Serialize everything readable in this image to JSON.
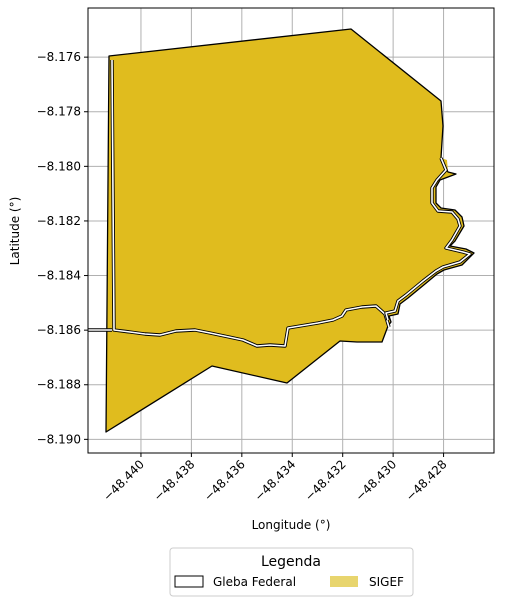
{
  "chart_data": {
    "type": "map",
    "xlabel": "Longitude (°)",
    "ylabel": "Latitude (°)",
    "xlim": [
      -48.4421,
      -48.426
    ],
    "ylim": [
      -8.1905,
      -8.1742
    ],
    "x_ticks": [
      -48.44,
      -48.438,
      -48.436,
      -48.434,
      -48.432,
      -48.43,
      -48.428
    ],
    "x_tick_labels": [
      "−48.440",
      "−48.438",
      "−48.436",
      "−48.434",
      "−48.432",
      "−48.430",
      "−48.428"
    ],
    "y_ticks": [
      -8.176,
      -8.178,
      -8.18,
      -8.182,
      -8.184,
      -8.186,
      -8.188,
      -8.19
    ],
    "y_tick_labels": [
      "−8.176",
      "−8.178",
      "−8.180",
      "−8.182",
      "−8.184",
      "−8.186",
      "−8.188",
      "−8.190"
    ],
    "grid": true,
    "legend": {
      "title": "Legenda",
      "placement": "bottom-center",
      "entries": [
        {
          "label": "Gleba Federal",
          "style": "outline"
        },
        {
          "label": "SIGEF",
          "style": "fill"
        }
      ]
    },
    "colors": {
      "sigef_fill": "#e0bc1e",
      "sigef_legend": "#e8d56e",
      "outline": "#000000",
      "grid": "#b0b0b0"
    },
    "layers": {
      "sigef": [
        [
          -48.4408,
          -8.1758
        ],
        [
          -48.432,
          -8.1748
        ],
        [
          -48.4283,
          -8.1775
        ],
        [
          -48.4281,
          -8.1797
        ],
        [
          -48.4285,
          -8.1803
        ],
        [
          -48.4282,
          -8.1808
        ],
        [
          -48.4276,
          -8.1817
        ],
        [
          -48.4272,
          -8.1825
        ],
        [
          -48.4271,
          -8.1832
        ],
        [
          -48.4275,
          -8.184
        ],
        [
          -48.4283,
          -8.1845
        ],
        [
          -48.4289,
          -8.1849
        ],
        [
          -48.4296,
          -8.1856
        ],
        [
          -48.4297,
          -8.186
        ],
        [
          -48.4304,
          -8.185
        ],
        [
          -48.4314,
          -8.185
        ],
        [
          -48.4322,
          -8.185
        ],
        [
          -48.4326,
          -8.1856
        ],
        [
          -48.4331,
          -8.1858
        ],
        [
          -48.4339,
          -8.186
        ],
        [
          -48.4347,
          -8.1867
        ],
        [
          -48.4359,
          -8.1865
        ],
        [
          -48.4372,
          -8.1862
        ],
        [
          -48.438,
          -8.1862
        ],
        [
          -48.4388,
          -8.1861
        ],
        [
          -48.44,
          -8.1862
        ],
        [
          -48.4412,
          -8.186
        ],
        [
          -48.4412,
          -8.1898
        ],
        [
          -48.437,
          -8.1874
        ],
        [
          -48.4342,
          -8.188
        ],
        [
          -48.4321,
          -8.1864
        ],
        [
          -48.4306,
          -8.1865
        ],
        [
          -48.4299,
          -8.186
        ],
        [
          -48.4298,
          -8.1857
        ],
        [
          -48.429,
          -8.185
        ],
        [
          -48.4277,
          -8.1839
        ],
        [
          -48.427,
          -8.1835
        ],
        [
          -48.4265,
          -8.1832
        ],
        [
          -48.4268,
          -8.1829
        ],
        [
          -48.4274,
          -8.183
        ],
        [
          -48.4271,
          -8.1825
        ],
        [
          -48.4274,
          -8.1818
        ],
        [
          -48.4276,
          -8.1812
        ],
        [
          -48.4282,
          -8.181
        ],
        [
          -48.4287,
          -8.1806
        ],
        [
          -48.4287,
          -8.18
        ],
        [
          -48.4285,
          -8.1794
        ],
        [
          -48.4283,
          -8.1775
        ]
      ]
    }
  }
}
